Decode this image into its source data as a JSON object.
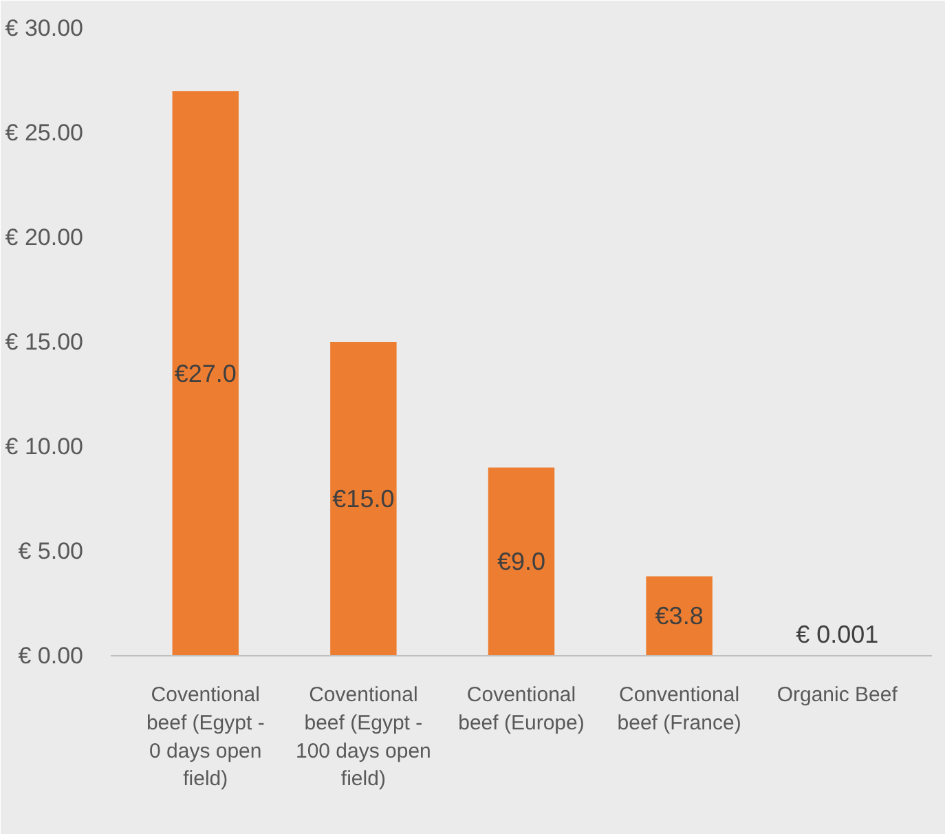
{
  "chart_data": {
    "type": "bar",
    "categories": [
      "Coventional beef (Egypt - 0 days open field)",
      "Coventional beef (Egypt - 100 days open field)",
      "Coventional beef (Europe)",
      "Conventional beef (France)",
      "Organic Beef"
    ],
    "values": [
      27.0,
      15.0,
      9.0,
      3.8,
      0.001
    ],
    "value_labels": [
      "€27.0",
      "€15.0",
      "€9.0",
      "€3.8",
      "€ 0.001"
    ],
    "color": "#ed7d31",
    "ylim": [
      0,
      30
    ],
    "yticks": [
      {
        "value": 0,
        "label": "€ 0.00"
      },
      {
        "value": 5,
        "label": "€ 5.00"
      },
      {
        "value": 10,
        "label": "€ 10.00"
      },
      {
        "value": 15,
        "label": "€ 15.00"
      },
      {
        "value": 20,
        "label": "€ 20.00"
      },
      {
        "value": 25,
        "label": "€ 25.00"
      },
      {
        "value": 30,
        "label": "€ 30.00"
      }
    ],
    "grid": false
  }
}
